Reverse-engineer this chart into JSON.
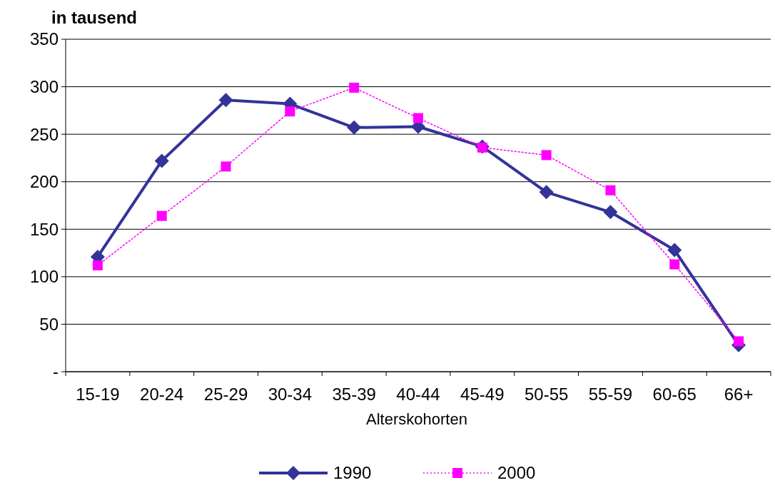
{
  "chart_data": {
    "type": "line",
    "ylabel": "in tausend",
    "xlabel": "Alterskohorten",
    "categories": [
      "15-19",
      "20-24",
      "25-29",
      "30-34",
      "35-39",
      "40-44",
      "45-49",
      "50-55",
      "55-59",
      "60-65",
      "66+"
    ],
    "series": [
      {
        "name": "1990",
        "color": "#333399",
        "marker": "diamond",
        "line_style": "solid",
        "values": [
          121,
          222,
          286,
          282,
          257,
          258,
          237,
          189,
          168,
          128,
          28
        ]
      },
      {
        "name": "2000",
        "color": "#ff00ff",
        "marker": "square",
        "line_style": "dotted",
        "values": [
          112,
          164,
          216,
          274,
          299,
          267,
          236,
          228,
          191,
          113,
          32
        ]
      }
    ],
    "ylim": [
      0,
      350
    ],
    "yticks": [
      {
        "value": 0,
        "label": "-"
      },
      50,
      100,
      150,
      200,
      250,
      300,
      350
    ],
    "grid": "y",
    "legend": "bottom"
  }
}
